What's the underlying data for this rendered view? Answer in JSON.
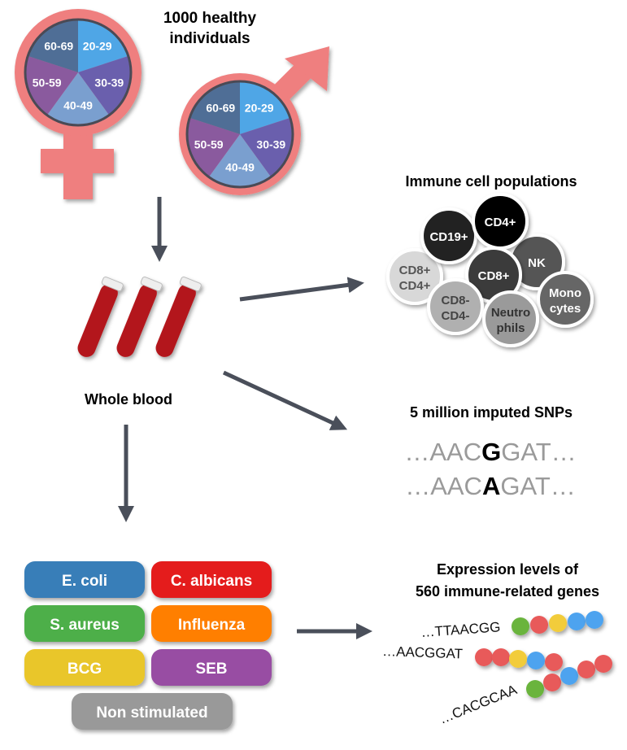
{
  "cohort": {
    "title_line1": "1000 healthy",
    "title_line2": "individuals",
    "age_groups": [
      "20-29",
      "30-39",
      "40-49",
      "50-59",
      "60-69"
    ],
    "age_colors": [
      "#4fa6e6",
      "#6a5fad",
      "#7a9fcf",
      "#8a5a9e",
      "#4f6e96"
    ],
    "symbol_color": "#ef7f7f"
  },
  "blood": {
    "label": "Whole blood"
  },
  "immune_cells": {
    "title": "Immune cell populations",
    "cells": [
      {
        "line1": "CD8+",
        "line2": "CD4+",
        "fill": "#d8d8d8",
        "text": "#555555"
      },
      {
        "line1": "CD19+",
        "line2": "",
        "fill": "#222222",
        "text": "#ffffff"
      },
      {
        "line1": "NK",
        "line2": "",
        "fill": "#555555",
        "text": "#ffffff"
      },
      {
        "line1": "CD4+",
        "line2": "",
        "fill": "#000000",
        "text": "#ffffff"
      },
      {
        "line1": "CD8+",
        "line2": "",
        "fill": "#3a3a3a",
        "text": "#ffffff"
      },
      {
        "line1": "CD8-",
        "line2": "CD4-",
        "fill": "#b0b0b0",
        "text": "#444444"
      },
      {
        "line1": "Mono",
        "line2": "cytes",
        "fill": "#666666",
        "text": "#ffffff"
      },
      {
        "line1": "Neutro",
        "line2": "phils",
        "fill": "#9a9a9a",
        "text": "#333333"
      }
    ]
  },
  "snps": {
    "title": "5 million imputed SNPs",
    "seq1": {
      "prefix": "…AAC",
      "variant": "G",
      "suffix": "GAT…"
    },
    "seq2": {
      "prefix": "…AAC",
      "variant": "A",
      "suffix": "GAT…"
    }
  },
  "stimuli": [
    {
      "label": "E. coli",
      "color": "#377eb8"
    },
    {
      "label": "C. albicans",
      "color": "#e41a1c"
    },
    {
      "label": "S. aureus",
      "color": "#4daf4a"
    },
    {
      "label": "Influenza",
      "color": "#ff7f00"
    },
    {
      "label": "BCG",
      "color": "#e9c62a"
    },
    {
      "label": "SEB",
      "color": "#984ea3"
    },
    {
      "label": "Non stimulated",
      "color": "#999999"
    }
  ],
  "expression": {
    "title_line1": "Expression levels of",
    "title_line2": "560 immune-related genes",
    "sequences": [
      "…TTAACGG",
      "…AACGGAT",
      "…CACGCAA"
    ],
    "bead_colors": {
      "green": "#6ab43e",
      "red": "#e85a5a",
      "yellow": "#f2cc3a",
      "blue": "#4ea3ef"
    }
  },
  "arrow_color": "#4a4f5a"
}
